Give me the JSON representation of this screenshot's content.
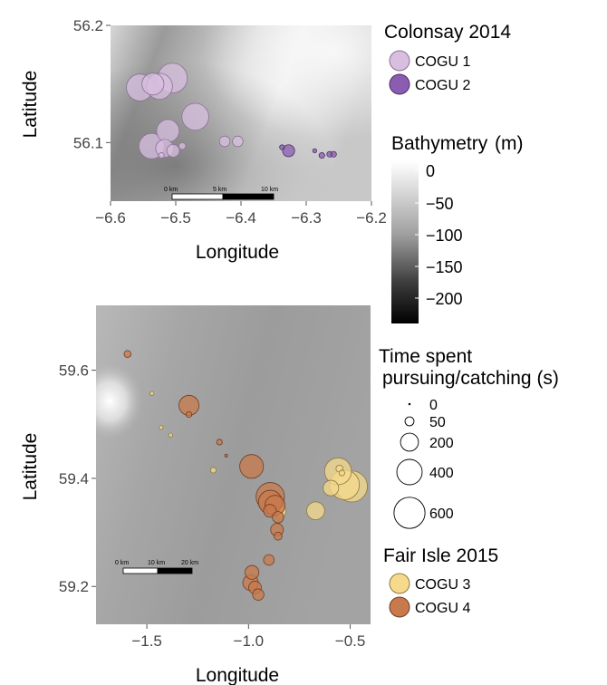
{
  "chart_data": [
    {
      "type": "scatter",
      "title": "",
      "xlabel": "Longitude",
      "ylabel": "Latitude",
      "xlim": [
        -6.6,
        -6.2
      ],
      "ylim": [
        56.05,
        56.2
      ],
      "x_ticks": [
        "-6.6",
        "-6.5",
        "-6.4",
        "-6.3",
        "-6.2"
      ],
      "y_ticks": [
        "56.1",
        "56.2"
      ],
      "scale_bar": [
        "0 km",
        "5 km",
        "10 km"
      ],
      "series": [
        {
          "name": "COGU 1",
          "color": "#d8bfe0",
          "stroke": "#8a7095",
          "points": [
            {
              "x": -6.555,
              "y": 56.147,
              "t": 450
            },
            {
              "x": -6.525,
              "y": 56.148,
              "t": 420
            },
            {
              "x": -6.505,
              "y": 56.155,
              "t": 550
            },
            {
              "x": -6.535,
              "y": 56.15,
              "t": 300
            },
            {
              "x": -6.47,
              "y": 56.122,
              "t": 450
            },
            {
              "x": -6.512,
              "y": 56.11,
              "t": 320
            },
            {
              "x": -6.537,
              "y": 56.097,
              "t": 400
            },
            {
              "x": -6.517,
              "y": 56.095,
              "t": 200
            },
            {
              "x": -6.504,
              "y": 56.093,
              "t": 100
            },
            {
              "x": -6.49,
              "y": 56.097,
              "t": 30
            },
            {
              "x": -6.522,
              "y": 56.089,
              "t": 20
            },
            {
              "x": -6.425,
              "y": 56.101,
              "t": 70
            },
            {
              "x": -6.405,
              "y": 56.101,
              "t": 70
            }
          ]
        },
        {
          "name": "COGU 2",
          "color": "#8b5cb0",
          "stroke": "#4b2f66",
          "points": [
            {
              "x": -6.337,
              "y": 56.096,
              "t": 15
            },
            {
              "x": -6.327,
              "y": 56.093,
              "t": 90
            },
            {
              "x": -6.287,
              "y": 56.093,
              "t": 10
            },
            {
              "x": -6.276,
              "y": 56.089,
              "t": 20
            },
            {
              "x": -6.264,
              "y": 56.09,
              "t": 20
            },
            {
              "x": -6.258,
              "y": 56.09,
              "t": 20
            }
          ]
        }
      ]
    },
    {
      "type": "scatter",
      "title": "",
      "xlabel": "Longitude",
      "ylabel": "Latitude",
      "xlim": [
        -1.75,
        -0.4
      ],
      "ylim": [
        59.13,
        59.72
      ],
      "x_ticks": [
        "-1.5",
        "-1.0",
        "-0.5"
      ],
      "y_ticks": [
        "59.2",
        "59.4",
        "59.6"
      ],
      "scale_bar": [
        "0 km",
        "10 km",
        "20 km"
      ],
      "series": [
        {
          "name": "COGU 3",
          "color": "#f6d98c",
          "stroke": "#8a7a40",
          "points": [
            {
              "x": -1.475,
              "y": 59.557,
              "t": 10
            },
            {
              "x": -1.43,
              "y": 59.494,
              "t": 10
            },
            {
              "x": -1.383,
              "y": 59.48,
              "t": 10
            },
            {
              "x": -1.173,
              "y": 59.415,
              "t": 20
            },
            {
              "x": -0.845,
              "y": 59.339,
              "t": 90
            },
            {
              "x": -0.67,
              "y": 59.34,
              "t": 200
            },
            {
              "x": -0.595,
              "y": 59.382,
              "t": 150
            },
            {
              "x": -0.528,
              "y": 59.388,
              "t": 550
            },
            {
              "x": -0.492,
              "y": 59.385,
              "t": 600
            },
            {
              "x": -0.56,
              "y": 59.413,
              "t": 450
            },
            {
              "x": -0.553,
              "y": 59.418,
              "t": 30
            },
            {
              "x": -0.541,
              "y": 59.41,
              "t": 20
            }
          ]
        },
        {
          "name": "COGU 4",
          "color": "#c87a4c",
          "stroke": "#6e3d22",
          "points": [
            {
              "x": -1.595,
              "y": 59.63,
              "t": 30
            },
            {
              "x": -1.293,
              "y": 59.535,
              "t": 250
            },
            {
              "x": -1.293,
              "y": 59.518,
              "t": 20
            },
            {
              "x": -1.143,
              "y": 59.467,
              "t": 20
            },
            {
              "x": -1.11,
              "y": 59.442,
              "t": 5
            },
            {
              "x": -0.985,
              "y": 59.422,
              "t": 350
            },
            {
              "x": -0.893,
              "y": 59.366,
              "t": 500
            },
            {
              "x": -0.893,
              "y": 59.356,
              "t": 350
            },
            {
              "x": -0.87,
              "y": 59.35,
              "t": 250
            },
            {
              "x": -0.895,
              "y": 59.34,
              "t": 100
            },
            {
              "x": -0.855,
              "y": 59.328,
              "t": 80
            },
            {
              "x": -0.86,
              "y": 59.305,
              "t": 100
            },
            {
              "x": -0.855,
              "y": 59.293,
              "t": 40
            },
            {
              "x": -0.9,
              "y": 59.249,
              "t": 70
            },
            {
              "x": -0.983,
              "y": 59.226,
              "t": 120
            },
            {
              "x": -0.99,
              "y": 59.207,
              "t": 150
            },
            {
              "x": -0.968,
              "y": 59.198,
              "t": 100
            },
            {
              "x": -0.952,
              "y": 59.185,
              "t": 80
            }
          ]
        }
      ]
    }
  ],
  "legend": {
    "colonsay_title": "Colonsay 2014",
    "colonsay_items": [
      {
        "label": "COGU 1",
        "color": "#d8bfe0",
        "stroke": "#8a7095"
      },
      {
        "label": "COGU 2",
        "color": "#8b5cb0",
        "stroke": "#4b2f66"
      }
    ],
    "bathymetry_title": "Bathymetry",
    "bathymetry_unit": "(m)",
    "bathymetry_values": [
      "0",
      "−50",
      "−100",
      "−150",
      "−200"
    ],
    "size_title_1": "Time spent",
    "size_title_2": "pursuing/catching (s)",
    "size_items": [
      {
        "label": "0",
        "t": 0
      },
      {
        "label": "50",
        "t": 50
      },
      {
        "label": "200",
        "t": 200
      },
      {
        "label": "400",
        "t": 400
      },
      {
        "label": "600",
        "t": 600
      }
    ],
    "fairisle_title": "Fair Isle 2015",
    "fairisle_items": [
      {
        "label": "COGU 3",
        "color": "#f6d98c",
        "stroke": "#8a7a40"
      },
      {
        "label": "COGU 4",
        "color": "#c87a4c",
        "stroke": "#6e3d22"
      }
    ]
  }
}
